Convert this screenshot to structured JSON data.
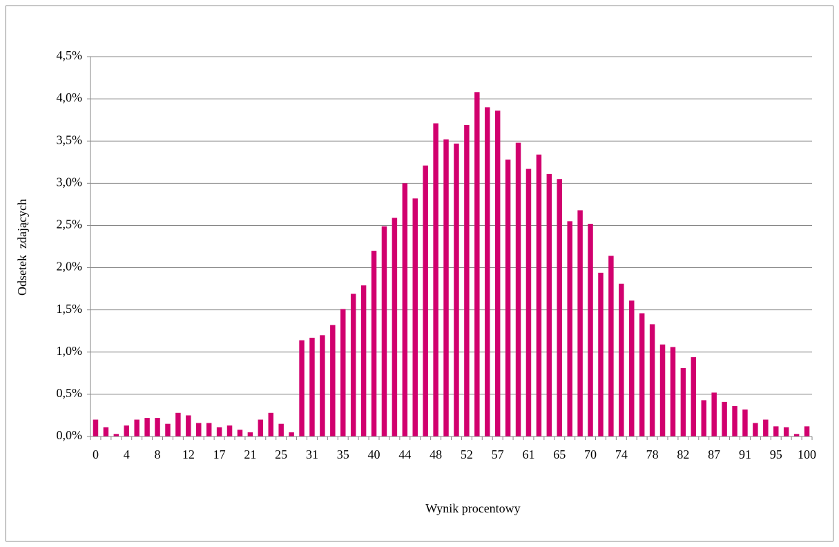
{
  "chart_data": {
    "type": "bar",
    "y_label": "Odsetek  zdających",
    "x_label": "Wynik procentowy",
    "color": "#d1006e",
    "grid": true,
    "categories": [
      "0",
      null,
      null,
      "4",
      null,
      null,
      "8",
      null,
      null,
      "12",
      null,
      null,
      "17",
      null,
      null,
      "21",
      null,
      null,
      "25",
      null,
      null,
      "31",
      null,
      null,
      "35",
      null,
      null,
      "40",
      null,
      null,
      "44",
      null,
      null,
      "48",
      null,
      null,
      "52",
      null,
      null,
      "57",
      null,
      null,
      "61",
      null,
      null,
      "65",
      null,
      null,
      "70",
      null,
      null,
      "74",
      null,
      null,
      "78",
      null,
      null,
      "82",
      null,
      null,
      "87",
      null,
      null,
      "91",
      null,
      null,
      "95",
      null,
      null,
      "100"
    ],
    "values": [
      0.2,
      0.11,
      0.03,
      0.13,
      0.2,
      0.22,
      0.22,
      0.15,
      0.28,
      0.25,
      0.16,
      0.16,
      0.11,
      0.13,
      0.08,
      0.05,
      0.2,
      0.28,
      0.15,
      0.05,
      1.14,
      1.17,
      1.2,
      1.32,
      1.51,
      1.69,
      1.79,
      2.2,
      2.49,
      2.59,
      3.0,
      2.82,
      3.21,
      3.71,
      3.52,
      3.47,
      3.69,
      4.08,
      3.9,
      3.86,
      3.28,
      3.48,
      3.17,
      3.34,
      3.11,
      3.05,
      2.55,
      2.68,
      2.52,
      1.94,
      2.14,
      1.81,
      1.61,
      1.46,
      1.33,
      1.09,
      1.06,
      0.81,
      0.94,
      0.43,
      0.52,
      0.41,
      0.36,
      0.32,
      0.16,
      0.2,
      0.12,
      0.11,
      0.03,
      0.12
    ],
    "ylim": [
      0,
      4.5
    ],
    "yticks": [
      {
        "value": 0,
        "label": "0,0%"
      },
      {
        "value": 0.5,
        "label": "0,5%"
      },
      {
        "value": 1,
        "label": "1,0%"
      },
      {
        "value": 1.5,
        "label": "1,5%"
      },
      {
        "value": 2,
        "label": "2,0%"
      },
      {
        "value": 2.5,
        "label": "2,5%"
      },
      {
        "value": 3,
        "label": "3,0%"
      },
      {
        "value": 3.5,
        "label": "3,5%"
      },
      {
        "value": 4,
        "label": "4,0%"
      },
      {
        "value": 4.5,
        "label": "4,5%"
      }
    ]
  }
}
